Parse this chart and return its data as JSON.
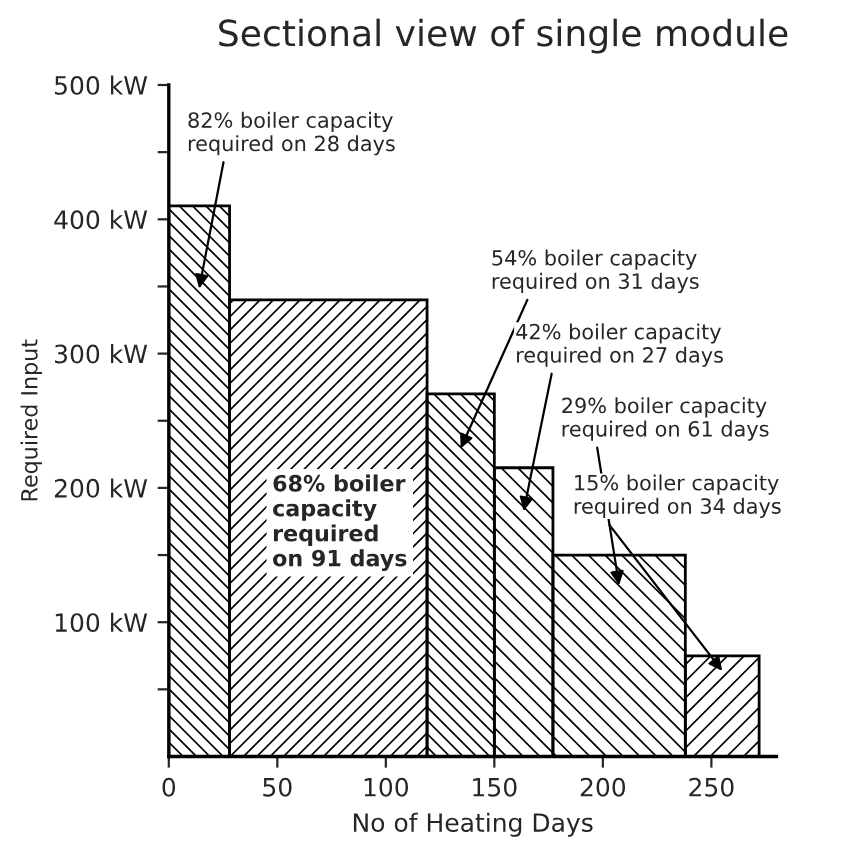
{
  "chart_data": {
    "type": "histogram",
    "title": "Sectional view of single module",
    "xlabel": "No of Heating Days",
    "ylabel": "Required Input",
    "bins": [
      0,
      28,
      119,
      150,
      177,
      238,
      272
    ],
    "values": [
      410,
      340,
      270,
      215,
      150,
      75
    ],
    "color": "#000000",
    "xlim": [
      0,
      280
    ],
    "xticks": [
      0,
      50,
      100,
      150,
      200,
      250
    ],
    "ylim": [
      0,
      500
    ],
    "yticks": [
      {
        "value": 50,
        "label": null
      },
      {
        "value": 100,
        "label": "100 kW"
      },
      {
        "value": 150,
        "label": null
      },
      {
        "value": 200,
        "label": "200 kW"
      },
      {
        "value": 250,
        "label": null
      },
      {
        "value": 300,
        "label": "300 kW"
      },
      {
        "value": 350,
        "label": null
      },
      {
        "value": 400,
        "label": "400 kW"
      },
      {
        "value": 450,
        "label": null
      },
      {
        "value": 500,
        "label": "500 kW"
      }
    ],
    "grid": false,
    "legend": false,
    "annotations": [
      "82% boiler capacity\nrequired on 28 days",
      "68% boiler\ncapacity\nrequired\non 91 days",
      "54% boiler capacity\nrequired on 31 days",
      "42% boiler capacity\nrequired on 27 days",
      "29% boiler capacity\nrequired on 61 days",
      "15% boiler capacity\nrequired on 34 days"
    ]
  }
}
